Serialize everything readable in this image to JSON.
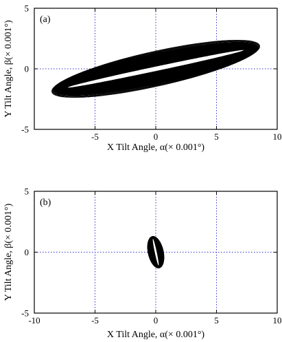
{
  "chart_data": [
    {
      "type": "line",
      "panel_label": "(a)",
      "xlabel": "X Tilt Angle, α(× 0.001°)",
      "ylabel": "Y Tilt Angle, β(× 0.001°)",
      "xlim": [
        -10,
        10
      ],
      "ylim": [
        -5,
        5
      ],
      "x_ticks": [
        -5,
        0,
        5,
        10
      ],
      "y_ticks": [
        -5,
        0,
        5
      ],
      "grid": "dotted lines at x=-5, x=0, x=5 and y=0",
      "shape": {
        "description": "dense elliptical trace loops",
        "center": [
          0,
          0
        ],
        "x_extent": [
          -8.5,
          8.5
        ],
        "y_extent": [
          -1.8,
          1.8
        ],
        "tilt_deg_data": 12,
        "outer_semi_major": 8.6,
        "outer_semi_minor": 1.25,
        "inner_gap_semi_minor": 0.18,
        "tips": [
          [
            -8.3,
            -1.6
          ],
          [
            8.3,
            1.6
          ]
        ]
      },
      "colors": {
        "trace": "#000000",
        "grid": "#3333cc"
      }
    },
    {
      "type": "line",
      "panel_label": "(b)",
      "xlabel": "X Tilt Angle, α(× 0.001°)",
      "ylabel": "Y Tilt Angle, β(× 0.001°)",
      "xlim": [
        -10,
        10
      ],
      "ylim": [
        -5,
        5
      ],
      "x_ticks": [
        -10,
        -5,
        0,
        5,
        10
      ],
      "y_ticks": [
        -5,
        0,
        5
      ],
      "grid": "dotted lines at x=-5, x=0, x=5 and y=0",
      "shape": {
        "description": "small dense elliptical trace",
        "center": [
          0,
          0
        ],
        "x_extent": [
          -0.6,
          0.6
        ],
        "y_extent": [
          -1.2,
          1.2
        ],
        "tilt_deg_data": -78,
        "outer_semi_major": 1.3,
        "outer_semi_minor": 0.55,
        "inner_gap_semi_minor": 0.08
      },
      "colors": {
        "trace": "#000000",
        "grid": "#3333cc"
      }
    }
  ]
}
